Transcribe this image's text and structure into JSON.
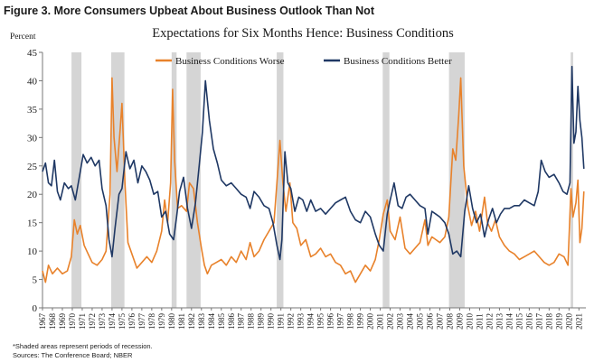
{
  "figure_title": "Figure 3. More Consumers Upbeat About Business Outlook Than Not",
  "footnotes": {
    "recession_note": "*Shaded areas represent periods of recession.",
    "sources": "Sources: The Conference Board; NBER"
  },
  "colors": {
    "worse": "#E8822B",
    "better": "#1F3864",
    "recession_shade": "#D5D5D5",
    "axis": "#777777"
  },
  "chart_data": {
    "type": "line",
    "title": "Expectations for Six Months Hence: Business Conditions",
    "ylabel": "Percent",
    "xlabel": "",
    "ylim": [
      0,
      45
    ],
    "yticks": [
      0,
      5,
      10,
      15,
      20,
      25,
      30,
      35,
      40,
      45
    ],
    "xlim": [
      1967,
      2021.7
    ],
    "x_tick_labels": [
      "1967",
      "1968",
      "1969",
      "1970",
      "1971",
      "1972",
      "1973",
      "1974",
      "1975",
      "1976",
      "1977",
      "1978",
      "1979",
      "1980",
      "1981",
      "1982",
      "1983",
      "1984",
      "1985",
      "1986",
      "1987",
      "1988",
      "1989",
      "1990",
      "1991",
      "1992",
      "1993",
      "1994",
      "1995",
      "1996",
      "1997",
      "1998",
      "1999",
      "2000",
      "2001",
      "2002",
      "2003",
      "2004",
      "2005",
      "2006",
      "2007",
      "2008",
      "2009",
      "2010",
      "2011",
      "2012",
      "2013",
      "2014",
      "2015",
      "2016",
      "2017",
      "2018",
      "2019",
      "2020",
      "2021"
    ],
    "grid": false,
    "legend_position": "top-center",
    "recessions": [
      {
        "start": 1969.92,
        "end": 1970.92
      },
      {
        "start": 1973.92,
        "end": 1975.25
      },
      {
        "start": 1980.0,
        "end": 1980.5
      },
      {
        "start": 1981.5,
        "end": 1982.92
      },
      {
        "start": 1990.58,
        "end": 1991.25
      },
      {
        "start": 2001.25,
        "end": 2001.92
      },
      {
        "start": 2007.92,
        "end": 2009.5
      },
      {
        "start": 2020.17,
        "end": 2020.42
      }
    ],
    "series": [
      {
        "name": "Business Conditions Worse",
        "color": "#E8822B",
        "points": [
          [
            1967.0,
            6.5
          ],
          [
            1967.3,
            4.5
          ],
          [
            1967.6,
            7.5
          ],
          [
            1968.0,
            6.0
          ],
          [
            1968.5,
            7.0
          ],
          [
            1969.0,
            6.0
          ],
          [
            1969.5,
            6.5
          ],
          [
            1969.9,
            9.0
          ],
          [
            1970.2,
            15.5
          ],
          [
            1970.5,
            13.0
          ],
          [
            1970.8,
            14.5
          ],
          [
            1971.2,
            11.0
          ],
          [
            1971.6,
            9.5
          ],
          [
            1972.0,
            8.0
          ],
          [
            1972.5,
            7.5
          ],
          [
            1973.0,
            8.5
          ],
          [
            1973.4,
            10.0
          ],
          [
            1973.8,
            20.0
          ],
          [
            1974.0,
            40.5
          ],
          [
            1974.2,
            30.0
          ],
          [
            1974.5,
            24.0
          ],
          [
            1974.8,
            31.0
          ],
          [
            1975.0,
            36.0
          ],
          [
            1975.3,
            22.0
          ],
          [
            1975.6,
            11.5
          ],
          [
            1976.0,
            9.5
          ],
          [
            1976.5,
            7.0
          ],
          [
            1977.0,
            8.0
          ],
          [
            1977.5,
            9.0
          ],
          [
            1978.0,
            8.0
          ],
          [
            1978.5,
            10.0
          ],
          [
            1979.0,
            13.5
          ],
          [
            1979.3,
            19.0
          ],
          [
            1979.6,
            15.0
          ],
          [
            1979.9,
            22.0
          ],
          [
            1980.1,
            38.5
          ],
          [
            1980.3,
            26.0
          ],
          [
            1980.6,
            17.5
          ],
          [
            1981.0,
            18.0
          ],
          [
            1981.5,
            17.0
          ],
          [
            1981.8,
            22.0
          ],
          [
            1982.2,
            21.0
          ],
          [
            1982.6,
            15.0
          ],
          [
            1983.0,
            10.5
          ],
          [
            1983.3,
            7.5
          ],
          [
            1983.6,
            6.0
          ],
          [
            1984.0,
            7.5
          ],
          [
            1984.5,
            8.0
          ],
          [
            1985.0,
            8.5
          ],
          [
            1985.5,
            7.5
          ],
          [
            1986.0,
            9.0
          ],
          [
            1986.5,
            8.0
          ],
          [
            1987.0,
            10.0
          ],
          [
            1987.5,
            8.5
          ],
          [
            1987.9,
            11.5
          ],
          [
            1988.3,
            9.0
          ],
          [
            1988.8,
            10.0
          ],
          [
            1989.3,
            12.0
          ],
          [
            1989.8,
            13.5
          ],
          [
            1990.3,
            15.0
          ],
          [
            1990.6,
            22.0
          ],
          [
            1990.9,
            29.5
          ],
          [
            1991.2,
            22.0
          ],
          [
            1991.5,
            17.0
          ],
          [
            1991.9,
            22.0
          ],
          [
            1992.2,
            15.0
          ],
          [
            1992.6,
            14.0
          ],
          [
            1993.0,
            11.0
          ],
          [
            1993.5,
            12.0
          ],
          [
            1994.0,
            9.0
          ],
          [
            1994.5,
            9.5
          ],
          [
            1995.0,
            10.5
          ],
          [
            1995.5,
            9.0
          ],
          [
            1996.0,
            9.5
          ],
          [
            1996.5,
            8.0
          ],
          [
            1997.0,
            7.5
          ],
          [
            1997.5,
            6.0
          ],
          [
            1998.0,
            6.5
          ],
          [
            1998.5,
            4.5
          ],
          [
            1999.0,
            6.0
          ],
          [
            1999.5,
            7.5
          ],
          [
            2000.0,
            6.5
          ],
          [
            2000.5,
            8.5
          ],
          [
            2000.9,
            12.0
          ],
          [
            2001.3,
            16.5
          ],
          [
            2001.7,
            19.0
          ],
          [
            2002.0,
            13.5
          ],
          [
            2002.5,
            12.0
          ],
          [
            2003.0,
            16.0
          ],
          [
            2003.5,
            10.5
          ],
          [
            2004.0,
            9.5
          ],
          [
            2004.5,
            10.5
          ],
          [
            2005.0,
            11.5
          ],
          [
            2005.5,
            15.5
          ],
          [
            2005.8,
            11.0
          ],
          [
            2006.2,
            12.5
          ],
          [
            2006.6,
            12.0
          ],
          [
            2007.0,
            11.5
          ],
          [
            2007.5,
            12.5
          ],
          [
            2007.9,
            16.0
          ],
          [
            2008.3,
            28.0
          ],
          [
            2008.6,
            26.0
          ],
          [
            2008.9,
            34.0
          ],
          [
            2009.1,
            40.5
          ],
          [
            2009.4,
            25.0
          ],
          [
            2009.8,
            18.0
          ],
          [
            2010.2,
            14.5
          ],
          [
            2010.6,
            17.0
          ],
          [
            2011.0,
            13.5
          ],
          [
            2011.5,
            19.5
          ],
          [
            2011.8,
            15.0
          ],
          [
            2012.2,
            13.5
          ],
          [
            2012.6,
            15.5
          ],
          [
            2013.0,
            12.5
          ],
          [
            2013.5,
            11.0
          ],
          [
            2014.0,
            10.0
          ],
          [
            2014.5,
            9.5
          ],
          [
            2015.0,
            8.5
          ],
          [
            2015.5,
            9.0
          ],
          [
            2016.0,
            9.5
          ],
          [
            2016.5,
            10.0
          ],
          [
            2017.0,
            9.0
          ],
          [
            2017.5,
            8.0
          ],
          [
            2018.0,
            7.5
          ],
          [
            2018.5,
            8.0
          ],
          [
            2019.0,
            9.5
          ],
          [
            2019.5,
            9.0
          ],
          [
            2019.9,
            7.5
          ],
          [
            2020.2,
            21.0
          ],
          [
            2020.4,
            16.0
          ],
          [
            2020.7,
            18.5
          ],
          [
            2020.9,
            22.5
          ],
          [
            2021.1,
            11.5
          ],
          [
            2021.3,
            14.0
          ],
          [
            2021.5,
            20.5
          ]
        ]
      },
      {
        "name": "Business Conditions Better",
        "color": "#1F3864",
        "points": [
          [
            1967.0,
            24.0
          ],
          [
            1967.3,
            25.5
          ],
          [
            1967.6,
            22.0
          ],
          [
            1967.9,
            21.5
          ],
          [
            1968.2,
            26.0
          ],
          [
            1968.5,
            20.5
          ],
          [
            1968.8,
            19.0
          ],
          [
            1969.2,
            22.0
          ],
          [
            1969.6,
            21.0
          ],
          [
            1969.9,
            21.5
          ],
          [
            1970.3,
            19.0
          ],
          [
            1970.7,
            23.0
          ],
          [
            1971.1,
            27.0
          ],
          [
            1971.5,
            25.5
          ],
          [
            1971.9,
            26.5
          ],
          [
            1972.3,
            25.0
          ],
          [
            1972.7,
            26.0
          ],
          [
            1973.0,
            21.0
          ],
          [
            1973.4,
            18.0
          ],
          [
            1973.7,
            12.0
          ],
          [
            1974.0,
            9.0
          ],
          [
            1974.3,
            14.0
          ],
          [
            1974.7,
            20.0
          ],
          [
            1975.0,
            21.0
          ],
          [
            1975.4,
            27.5
          ],
          [
            1975.8,
            24.5
          ],
          [
            1976.2,
            26.0
          ],
          [
            1976.6,
            22.0
          ],
          [
            1977.0,
            25.0
          ],
          [
            1977.4,
            24.0
          ],
          [
            1977.8,
            22.5
          ],
          [
            1978.2,
            20.0
          ],
          [
            1978.6,
            20.5
          ],
          [
            1979.0,
            16.0
          ],
          [
            1979.4,
            17.0
          ],
          [
            1979.8,
            13.0
          ],
          [
            1980.2,
            12.0
          ],
          [
            1980.5,
            16.0
          ],
          [
            1980.8,
            20.5
          ],
          [
            1981.2,
            23.0
          ],
          [
            1981.6,
            17.5
          ],
          [
            1982.0,
            14.0
          ],
          [
            1982.4,
            18.5
          ],
          [
            1982.8,
            25.5
          ],
          [
            1983.1,
            31.0
          ],
          [
            1983.4,
            40.0
          ],
          [
            1983.8,
            33.0
          ],
          [
            1984.2,
            28.0
          ],
          [
            1984.6,
            25.5
          ],
          [
            1985.0,
            22.5
          ],
          [
            1985.5,
            21.5
          ],
          [
            1986.0,
            22.0
          ],
          [
            1986.5,
            21.0
          ],
          [
            1987.0,
            20.0
          ],
          [
            1987.5,
            19.5
          ],
          [
            1987.9,
            17.5
          ],
          [
            1988.3,
            20.5
          ],
          [
            1988.8,
            19.5
          ],
          [
            1989.3,
            18.0
          ],
          [
            1989.8,
            17.5
          ],
          [
            1990.2,
            15.0
          ],
          [
            1990.6,
            11.0
          ],
          [
            1990.9,
            8.5
          ],
          [
            1991.1,
            12.0
          ],
          [
            1991.4,
            27.5
          ],
          [
            1991.7,
            22.0
          ],
          [
            1992.0,
            21.0
          ],
          [
            1992.4,
            17.0
          ],
          [
            1992.8,
            19.5
          ],
          [
            1993.2,
            19.0
          ],
          [
            1993.6,
            17.0
          ],
          [
            1994.0,
            19.0
          ],
          [
            1994.5,
            17.0
          ],
          [
            1995.0,
            17.5
          ],
          [
            1995.5,
            16.5
          ],
          [
            1996.0,
            17.5
          ],
          [
            1996.5,
            18.5
          ],
          [
            1997.0,
            19.0
          ],
          [
            1997.5,
            19.5
          ],
          [
            1998.0,
            17.0
          ],
          [
            1998.5,
            15.5
          ],
          [
            1999.0,
            15.0
          ],
          [
            1999.5,
            17.0
          ],
          [
            2000.0,
            16.0
          ],
          [
            2000.5,
            13.0
          ],
          [
            2000.9,
            11.0
          ],
          [
            2001.3,
            10.0
          ],
          [
            2001.7,
            16.5
          ],
          [
            2002.0,
            19.0
          ],
          [
            2002.4,
            22.0
          ],
          [
            2002.8,
            18.0
          ],
          [
            2003.2,
            17.5
          ],
          [
            2003.6,
            19.5
          ],
          [
            2004.0,
            20.0
          ],
          [
            2004.5,
            19.0
          ],
          [
            2005.0,
            18.0
          ],
          [
            2005.5,
            17.5
          ],
          [
            2005.8,
            13.0
          ],
          [
            2006.2,
            17.0
          ],
          [
            2006.6,
            16.5
          ],
          [
            2007.0,
            16.0
          ],
          [
            2007.5,
            15.0
          ],
          [
            2007.9,
            13.0
          ],
          [
            2008.3,
            9.5
          ],
          [
            2008.7,
            10.0
          ],
          [
            2009.1,
            9.0
          ],
          [
            2009.5,
            17.0
          ],
          [
            2009.9,
            21.5
          ],
          [
            2010.3,
            17.5
          ],
          [
            2010.7,
            15.0
          ],
          [
            2011.1,
            16.5
          ],
          [
            2011.5,
            12.5
          ],
          [
            2011.9,
            15.5
          ],
          [
            2012.3,
            17.5
          ],
          [
            2012.7,
            15.0
          ],
          [
            2013.1,
            16.5
          ],
          [
            2013.5,
            17.5
          ],
          [
            2014.0,
            17.5
          ],
          [
            2014.5,
            18.0
          ],
          [
            2015.0,
            18.0
          ],
          [
            2015.5,
            19.0
          ],
          [
            2016.0,
            18.5
          ],
          [
            2016.5,
            18.0
          ],
          [
            2016.9,
            20.5
          ],
          [
            2017.2,
            26.0
          ],
          [
            2017.6,
            24.0
          ],
          [
            2018.0,
            23.0
          ],
          [
            2018.5,
            23.5
          ],
          [
            2019.0,
            22.0
          ],
          [
            2019.4,
            20.5
          ],
          [
            2019.8,
            20.0
          ],
          [
            2020.1,
            22.0
          ],
          [
            2020.3,
            42.5
          ],
          [
            2020.5,
            29.0
          ],
          [
            2020.7,
            31.0
          ],
          [
            2020.9,
            39.0
          ],
          [
            2021.1,
            33.0
          ],
          [
            2021.3,
            30.0
          ],
          [
            2021.5,
            24.5
          ]
        ]
      }
    ]
  }
}
